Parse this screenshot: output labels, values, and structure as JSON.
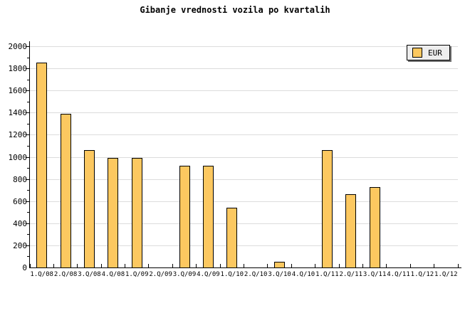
{
  "chart_data": {
    "type": "bar",
    "title": "Gibanje vrednosti vozila po kvartalih",
    "categories": [
      "1.Q/08",
      "2.Q/08",
      "3.Q/08",
      "4.Q/08",
      "1.Q/09",
      "2.Q/09",
      "3.Q/09",
      "4.Q/09",
      "1.Q/10",
      "2.Q/10",
      "3.Q/10",
      "4.Q/10",
      "1.Q/11",
      "2.Q/11",
      "3.Q/11",
      "4.Q/11",
      "1.Q/12",
      "1.Q/12"
    ],
    "series": [
      {
        "name": "EUR",
        "values": [
          1850,
          1390,
          1060,
          990,
          990,
          0,
          920,
          920,
          540,
          0,
          50,
          0,
          1060,
          660,
          725,
          0,
          0,
          0
        ]
      }
    ],
    "xlabel": "",
    "ylabel": "",
    "ylim": [
      0,
      2000
    ],
    "y_major_step": 200,
    "y_minor_step": 100,
    "y_tick_labels": [
      "0",
      "200",
      "400",
      "600",
      "800",
      "1000",
      "1200",
      "1400",
      "1600",
      "1800",
      "2000"
    ],
    "grid": "horizontal-major",
    "legend": {
      "position": "top-right",
      "entries": [
        "EUR"
      ]
    },
    "colors": {
      "bar_fill": "#FCC860",
      "bar_border": "#000000",
      "gridline": "#DCDCDC",
      "axis": "#000000",
      "text": "#000000",
      "background": "#FFFFFF",
      "legend_bg": "#EDEDED",
      "legend_shadow": "#707070"
    }
  }
}
